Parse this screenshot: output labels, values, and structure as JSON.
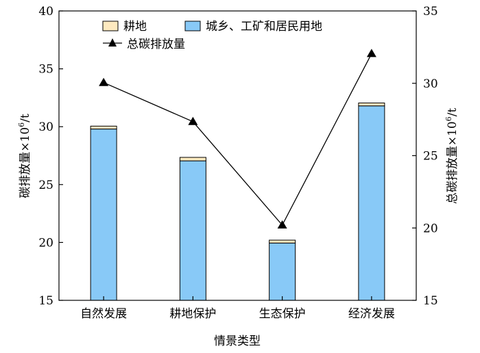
{
  "chart_data": {
    "type": "bar",
    "categories": [
      "自然发展",
      "耕地保护",
      "生态保护",
      "经济发展"
    ],
    "series": [
      {
        "name": "耕地",
        "type": "stacked-bar",
        "axis": "left",
        "color": "#fde9bf",
        "values": [
          0.25,
          0.3,
          0.25,
          0.25
        ]
      },
      {
        "name": "城乡、工矿和居民用地",
        "type": "stacked-bar",
        "axis": "left",
        "color": "#88c9f7",
        "values": [
          29.8,
          27.05,
          19.95,
          31.8
        ]
      },
      {
        "name": "总碳排放量",
        "type": "line",
        "axis": "right",
        "marker": "triangle",
        "color": "#000000",
        "values": [
          30.05,
          27.35,
          20.2,
          32.05
        ]
      }
    ],
    "xlabel": "情景类型",
    "ylabel": "碳排放量×10",
    "ylabel_sup": "6",
    "ylabel_unit": "/t",
    "y2label": "总碳排放量×10",
    "y2label_sup": "6",
    "y2label_unit": "/t",
    "ylim": [
      15,
      40
    ],
    "y2lim": [
      15,
      35
    ],
    "yticks": [
      "15",
      "20",
      "25",
      "30",
      "35",
      "40"
    ],
    "y2ticks": [
      "15",
      "20",
      "25",
      "30",
      "35"
    ],
    "grid": false,
    "legend": {
      "placement": "top-center",
      "items": [
        {
          "label": "耕地",
          "swatch": "#fde9bf"
        },
        {
          "label": "城乡、工矿和居民用地",
          "swatch": "#88c9f7"
        },
        {
          "label": "总碳排放量",
          "swatch": "line-triangle"
        }
      ]
    }
  }
}
